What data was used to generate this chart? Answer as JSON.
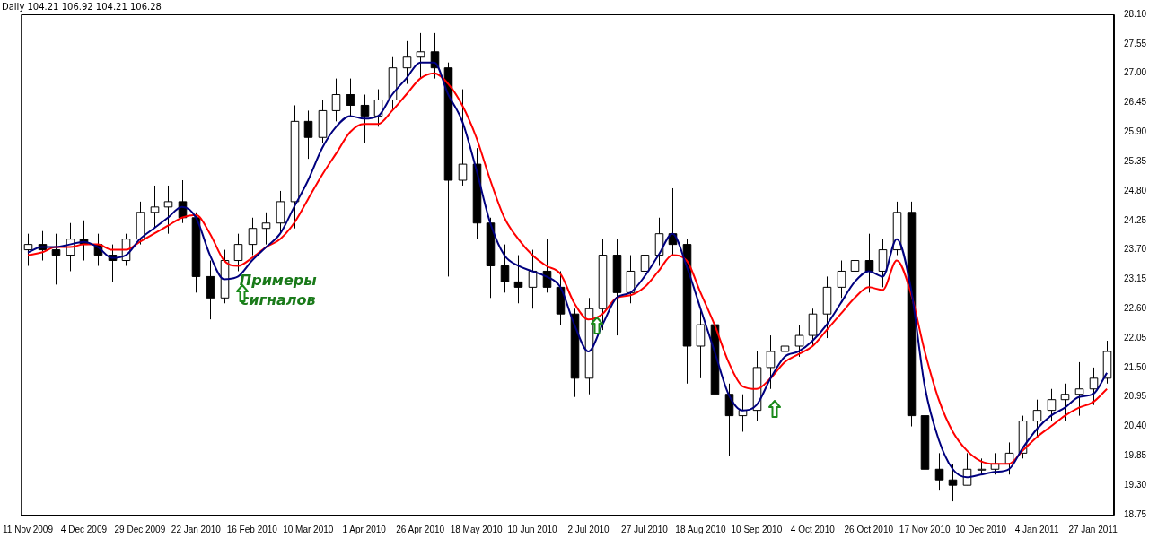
{
  "chart_data": {
    "type": "candlestick",
    "title": "Daily 104.21 106.92 104.21 106.28",
    "categories": [
      "11 Nov 2009",
      null,
      null,
      null,
      "4 Dec 2009",
      null,
      null,
      null,
      "29 Dec 2009",
      null,
      null,
      null,
      "22 Jan 2010",
      null,
      null,
      null,
      "16 Feb 2010",
      null,
      null,
      null,
      "10 Mar 2010",
      null,
      null,
      null,
      "1 Apr 2010",
      null,
      null,
      null,
      "26 Apr 2010",
      null,
      null,
      null,
      "18 May 2010",
      null,
      null,
      null,
      "10 Jun 2010",
      null,
      null,
      null,
      "2 Jul 2010",
      null,
      null,
      null,
      "27 Jul 2010",
      null,
      null,
      null,
      "18 Aug 2010",
      null,
      null,
      null,
      "10 Sep 2010",
      null,
      null,
      null,
      "4 Oct 2010",
      null,
      null,
      null,
      "26 Oct 2010",
      null,
      null,
      null,
      "17 Nov 2010",
      null,
      null,
      null,
      "10 Dec 2010",
      null,
      null,
      null,
      "4 Jan 2011",
      null,
      null,
      null,
      "27 Jan 2011",
      null
    ],
    "ohlc": [
      [
        23.7,
        24.0,
        23.4,
        23.8
      ],
      [
        23.8,
        24.05,
        23.5,
        23.7
      ],
      [
        23.7,
        24.0,
        23.05,
        23.6
      ],
      [
        23.6,
        24.2,
        23.3,
        23.9
      ],
      [
        23.9,
        24.25,
        23.5,
        23.8
      ],
      [
        23.8,
        24.0,
        23.4,
        23.6
      ],
      [
        23.6,
        23.8,
        23.1,
        23.5
      ],
      [
        23.5,
        24.0,
        23.4,
        23.9
      ],
      [
        23.9,
        24.6,
        23.8,
        24.4
      ],
      [
        24.4,
        24.9,
        24.1,
        24.5
      ],
      [
        24.5,
        24.9,
        24.0,
        24.6
      ],
      [
        24.6,
        25.0,
        24.2,
        24.3
      ],
      [
        24.3,
        24.4,
        22.9,
        23.2
      ],
      [
        23.2,
        23.5,
        22.4,
        22.8
      ],
      [
        22.8,
        23.7,
        22.7,
        23.5
      ],
      [
        23.5,
        24.0,
        23.3,
        23.8
      ],
      [
        23.8,
        24.3,
        23.6,
        24.1
      ],
      [
        24.1,
        24.4,
        23.8,
        24.2
      ],
      [
        24.2,
        24.8,
        24.0,
        24.6
      ],
      [
        24.6,
        26.4,
        24.1,
        26.1
      ],
      [
        26.1,
        26.3,
        25.4,
        25.8
      ],
      [
        25.8,
        26.5,
        25.7,
        26.3
      ],
      [
        26.3,
        26.9,
        26.1,
        26.6
      ],
      [
        26.6,
        26.9,
        26.2,
        26.4
      ],
      [
        26.4,
        26.6,
        25.7,
        26.2
      ],
      [
        26.2,
        26.7,
        26.0,
        26.5
      ],
      [
        26.5,
        27.3,
        26.3,
        27.1
      ],
      [
        27.1,
        27.6,
        26.8,
        27.3
      ],
      [
        27.3,
        27.75,
        26.9,
        27.4
      ],
      [
        27.4,
        27.75,
        26.9,
        27.1
      ],
      [
        27.1,
        27.2,
        23.2,
        25.0
      ],
      [
        25.0,
        26.7,
        24.9,
        25.3
      ],
      [
        25.3,
        25.6,
        23.9,
        24.2
      ],
      [
        24.2,
        24.3,
        22.8,
        23.4
      ],
      [
        23.4,
        23.8,
        22.9,
        23.1
      ],
      [
        23.1,
        23.6,
        22.7,
        23.0
      ],
      [
        23.0,
        23.7,
        22.6,
        23.3
      ],
      [
        23.3,
        23.9,
        22.9,
        23.0
      ],
      [
        23.0,
        23.3,
        22.3,
        22.5
      ],
      [
        22.5,
        22.6,
        20.95,
        21.3
      ],
      [
        21.3,
        22.8,
        21.0,
        22.6
      ],
      [
        22.6,
        23.9,
        22.2,
        23.6
      ],
      [
        23.6,
        23.9,
        22.1,
        22.9
      ],
      [
        22.9,
        23.6,
        22.7,
        23.3
      ],
      [
        23.3,
        23.9,
        23.0,
        23.6
      ],
      [
        23.6,
        24.3,
        23.4,
        24.0
      ],
      [
        24.0,
        24.85,
        23.6,
        23.8
      ],
      [
        23.8,
        23.9,
        21.2,
        21.9
      ],
      [
        21.9,
        22.6,
        21.3,
        22.3
      ],
      [
        22.3,
        22.4,
        20.6,
        21.0
      ],
      [
        21.0,
        21.2,
        19.85,
        20.6
      ],
      [
        20.6,
        21.0,
        20.3,
        20.7
      ],
      [
        20.7,
        21.8,
        20.5,
        21.5
      ],
      [
        21.5,
        22.1,
        21.1,
        21.8
      ],
      [
        21.8,
        22.1,
        21.5,
        21.9
      ],
      [
        21.9,
        22.3,
        21.7,
        22.1
      ],
      [
        22.1,
        22.6,
        21.9,
        22.5
      ],
      [
        22.5,
        23.2,
        22.05,
        23.0
      ],
      [
        23.0,
        23.5,
        22.8,
        23.3
      ],
      [
        23.3,
        23.9,
        23.0,
        23.5
      ],
      [
        23.5,
        24.0,
        22.9,
        23.3
      ],
      [
        23.3,
        23.9,
        23.0,
        23.7
      ],
      [
        23.7,
        24.6,
        23.6,
        24.4
      ],
      [
        24.4,
        24.6,
        20.4,
        20.6
      ],
      [
        20.6,
        20.9,
        19.35,
        19.6
      ],
      [
        19.6,
        19.9,
        19.2,
        19.4
      ],
      [
        19.4,
        19.7,
        19.0,
        19.3
      ],
      [
        19.3,
        19.9,
        19.3,
        19.6
      ],
      [
        19.6,
        19.8,
        19.5,
        19.6
      ],
      [
        19.6,
        19.9,
        19.5,
        19.7
      ],
      [
        19.7,
        20.1,
        19.5,
        19.9
      ],
      [
        19.9,
        20.6,
        19.8,
        20.5
      ],
      [
        20.5,
        20.9,
        20.2,
        20.7
      ],
      [
        20.7,
        21.1,
        20.5,
        20.9
      ],
      [
        20.9,
        21.2,
        20.5,
        21.0
      ],
      [
        21.0,
        21.6,
        20.6,
        21.1
      ],
      [
        21.1,
        21.5,
        20.8,
        21.3
      ],
      [
        21.3,
        22.0,
        21.2,
        21.8
      ]
    ],
    "series": [
      {
        "type": "line",
        "color": "#00007f",
        "values": [
          23.65,
          23.75,
          23.75,
          23.8,
          23.85,
          23.75,
          23.55,
          23.6,
          23.9,
          24.1,
          24.3,
          24.5,
          24.3,
          23.6,
          23.15,
          23.2,
          23.5,
          23.75,
          24.0,
          24.5,
          25.0,
          25.6,
          26.0,
          26.2,
          26.15,
          26.2,
          26.6,
          26.9,
          27.2,
          27.2,
          26.6,
          26.1,
          25.2,
          24.2,
          23.6,
          23.4,
          23.3,
          23.2,
          23.0,
          22.3,
          21.8,
          22.3,
          22.8,
          22.9,
          23.2,
          23.6,
          24.0,
          23.4,
          22.6,
          21.8,
          21.0,
          20.7,
          20.8,
          21.3,
          21.7,
          21.8,
          22.0,
          22.3,
          22.7,
          23.1,
          23.3,
          23.2,
          23.9,
          23.0,
          21.15,
          20.15,
          19.6,
          19.45,
          19.5,
          19.55,
          19.6,
          20.0,
          20.35,
          20.6,
          20.75,
          20.95,
          21.0,
          21.4
        ]
      },
      {
        "type": "line",
        "color": "#ff0000",
        "values": [
          23.6,
          23.65,
          23.75,
          23.75,
          23.8,
          23.8,
          23.7,
          23.7,
          23.85,
          24.0,
          24.15,
          24.3,
          24.35,
          24.0,
          23.5,
          23.4,
          23.55,
          23.75,
          23.9,
          24.2,
          24.65,
          25.1,
          25.5,
          25.9,
          26.05,
          26.05,
          26.3,
          26.6,
          26.9,
          27.0,
          26.8,
          26.4,
          25.8,
          25.0,
          24.3,
          23.9,
          23.6,
          23.4,
          23.25,
          22.7,
          22.4,
          22.5,
          22.8,
          22.85,
          23.0,
          23.3,
          23.6,
          23.5,
          22.9,
          22.3,
          21.6,
          21.15,
          21.1,
          21.3,
          21.6,
          21.75,
          21.9,
          22.2,
          22.5,
          22.8,
          23.0,
          22.95,
          23.5,
          22.9,
          21.8,
          20.9,
          20.3,
          19.95,
          19.75,
          19.7,
          19.7,
          19.95,
          20.2,
          20.4,
          20.6,
          20.75,
          20.85,
          21.1
        ]
      }
    ],
    "ylim": [
      18.75,
      28.1
    ],
    "yticks": [
      {
        "value": 18.75,
        "label": "18.75"
      },
      {
        "value": 19.3,
        "label": "19.30"
      },
      {
        "value": 19.85,
        "label": "19.85"
      },
      {
        "value": 20.4,
        "label": "20.40"
      },
      {
        "value": 20.95,
        "label": "20.95"
      },
      {
        "value": 21.5,
        "label": "21.50"
      },
      {
        "value": 22.05,
        "label": "22.05"
      },
      {
        "value": 22.6,
        "label": "22.60"
      },
      {
        "value": 23.15,
        "label": "23.15"
      },
      {
        "value": 23.7,
        "label": "23.70"
      },
      {
        "value": 24.25,
        "label": "24.25"
      },
      {
        "value": 24.8,
        "label": "24.80"
      },
      {
        "value": 25.35,
        "label": "25.35"
      },
      {
        "value": 25.9,
        "label": "25.90"
      },
      {
        "value": 26.45,
        "label": "26.45"
      },
      {
        "value": 27.0,
        "label": "27.00"
      },
      {
        "value": 27.55,
        "label": "27.55"
      },
      {
        "value": 28.1,
        "label": "28.10"
      }
    ],
    "annotations": [
      "Примеры сигналов"
    ]
  }
}
